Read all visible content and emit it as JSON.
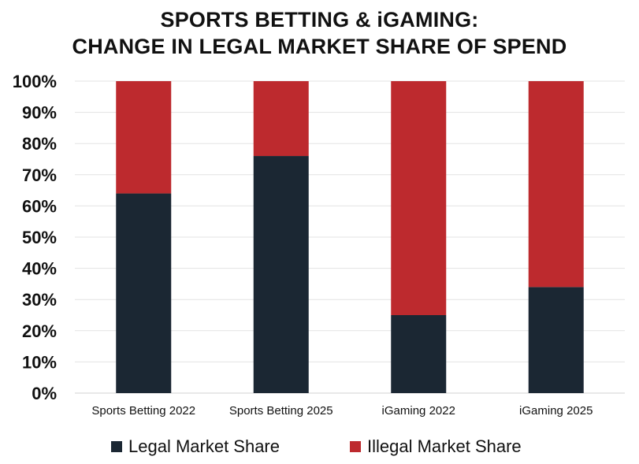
{
  "chart_data": {
    "type": "bar",
    "stacked": true,
    "title_lines": [
      "SPORTS BETTING & iGAMING:",
      "CHANGE IN LEGAL MARKET SHARE OF SPEND"
    ],
    "categories": [
      "Sports Betting 2022",
      "Sports Betting 2025",
      "iGaming 2022",
      "iGaming 2025"
    ],
    "series": [
      {
        "name": "Legal Market Share",
        "values": [
          64,
          76,
          25,
          34
        ],
        "color": "#1b2733"
      },
      {
        "name": "Illegal Market Share",
        "values": [
          36,
          24,
          75,
          66
        ],
        "color": "#bd2a2e"
      }
    ],
    "ylim": [
      0,
      100
    ],
    "yticks": [
      "0%",
      "10%",
      "20%",
      "30%",
      "40%",
      "50%",
      "60%",
      "70%",
      "80%",
      "90%",
      "100%"
    ],
    "xlabel": "",
    "ylabel": "",
    "grid": true,
    "legend_position": "bottom"
  }
}
